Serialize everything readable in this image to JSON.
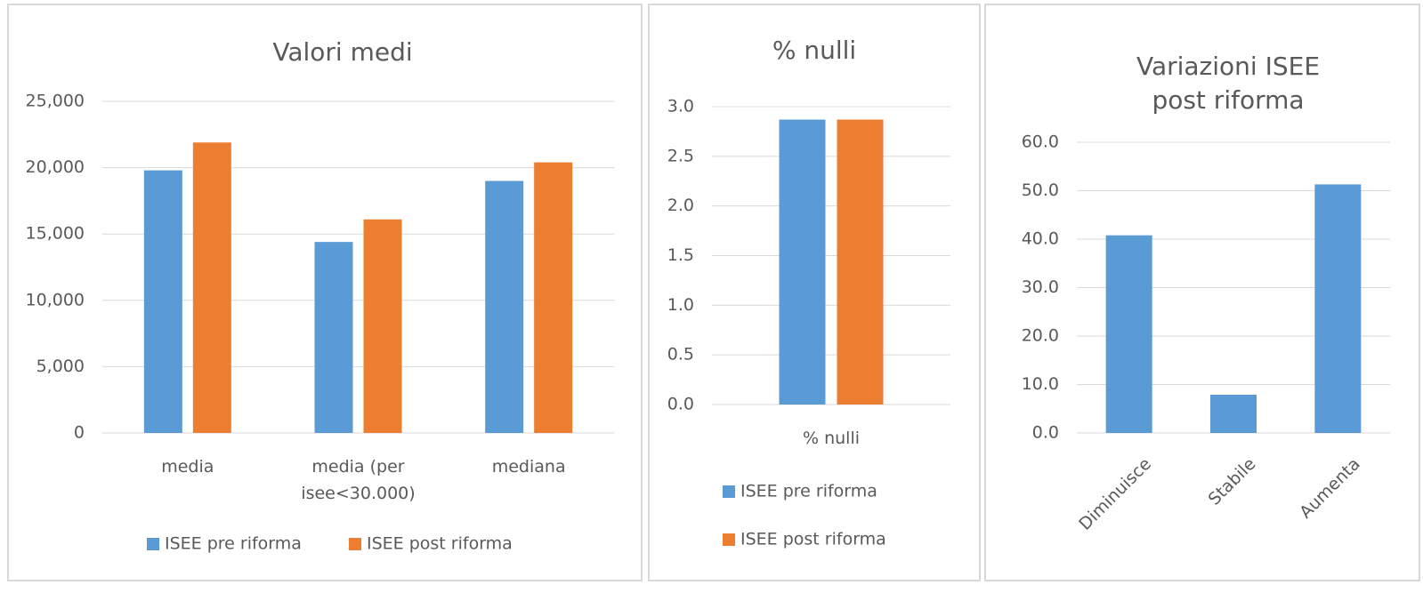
{
  "chart_data": [
    {
      "type": "bar",
      "title": "Valori medi",
      "categories": [
        "media",
        "media (per isee<30.000)",
        "mediana"
      ],
      "series": [
        {
          "name": "ISEE pre riforma",
          "color": "#5b9bd5",
          "values": [
            19800,
            14400,
            19000
          ]
        },
        {
          "name": "ISEE post riforma",
          "color": "#ed7d31",
          "values": [
            21900,
            16100,
            20400
          ]
        }
      ],
      "ylim": [
        0,
        25000
      ],
      "yticks": [
        0,
        {
          "value": 5000,
          "label": "5,000"
        },
        {
          "value": 10000,
          "label": "10,000"
        },
        {
          "value": 15000,
          "label": "15,000"
        },
        {
          "value": 20000,
          "label": "20,000"
        },
        {
          "value": 25000,
          "label": "25,000"
        }
      ],
      "grid": true,
      "legend": "bottom"
    },
    {
      "type": "bar",
      "title": "% nulli",
      "categories": [
        "% nulli"
      ],
      "series": [
        {
          "name": "ISEE pre riforma",
          "color": "#5b9bd5",
          "values": [
            2.87
          ]
        },
        {
          "name": "ISEE post riforma",
          "color": "#ed7d31",
          "values": [
            2.87
          ]
        }
      ],
      "ylim": [
        0,
        3
      ],
      "yticks": [
        {
          "value": 0,
          "label": "0.0"
        },
        {
          "value": 0.5,
          "label": "0.5"
        },
        {
          "value": 1,
          "label": "1.0"
        },
        {
          "value": 1.5,
          "label": "1.5"
        },
        {
          "value": 2,
          "label": "2.0"
        },
        {
          "value": 2.5,
          "label": "2.5"
        },
        {
          "value": 3,
          "label": "3.0"
        }
      ],
      "grid": true,
      "legend": "bottom"
    },
    {
      "type": "bar",
      "title": "Variazioni ISEE post riforma",
      "categories": [
        "Diminuisce",
        "Stabile",
        "Aumenta"
      ],
      "values": [
        40.8,
        7.9,
        51.3
      ],
      "color": "#5b9bd5",
      "ylim": [
        0,
        60
      ],
      "yticks": [
        {
          "value": 0,
          "label": "0.0"
        },
        {
          "value": 10,
          "label": "10.0"
        },
        {
          "value": 20,
          "label": "20.0"
        },
        {
          "value": 30,
          "label": "30.0"
        },
        {
          "value": 40,
          "label": "40.0"
        },
        {
          "value": 50,
          "label": "50.0"
        },
        {
          "value": 60,
          "label": "60.0"
        }
      ],
      "grid": true
    }
  ]
}
